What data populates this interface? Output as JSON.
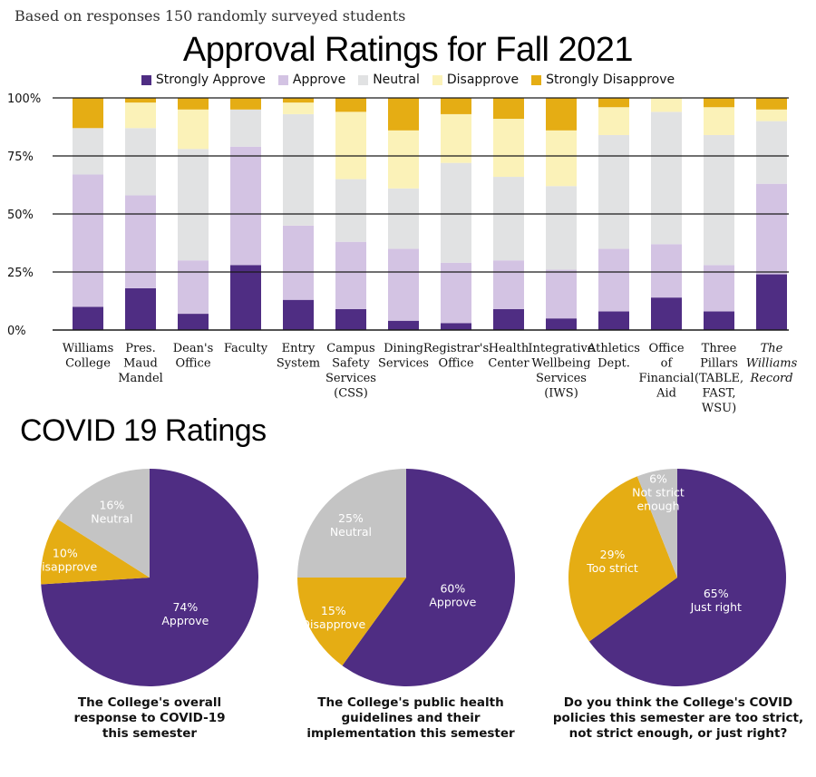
{
  "subtitle": "Based on responses 150 randomly surveyed students",
  "title": "Approval Ratings for Fall 2021",
  "colors": {
    "strongly_approve": "#4f2d83",
    "approve": "#d3c3e3",
    "neutral": "#e1e2e3",
    "disapprove": "#fbf2b8",
    "strongly_disapprove": "#e5ad14"
  },
  "legend": [
    "Strongly Approve",
    "Approve",
    "Neutral",
    "Disapprove",
    "Strongly Disapprove"
  ],
  "covid_title": "COVID 19 Ratings",
  "chart_data": [
    {
      "type": "bar",
      "stacked": true,
      "title": "Approval Ratings for Fall 2021",
      "ylim": [
        0,
        100
      ],
      "y_ticks": [
        "0%",
        "25%",
        "50%",
        "75%",
        "100%"
      ],
      "grid": true,
      "legend_position": "top",
      "categories": [
        [
          "Williams",
          "College"
        ],
        [
          "Pres.",
          "Maud",
          "Mandel"
        ],
        [
          "Dean's",
          "Office"
        ],
        [
          "Faculty"
        ],
        [
          "Entry",
          "System"
        ],
        [
          "Campus",
          "Safety",
          "Services",
          "(CSS)"
        ],
        [
          "Dining",
          "Services"
        ],
        [
          "Registrar's",
          "Office"
        ],
        [
          "Health",
          "Center"
        ],
        [
          "Integrative",
          "Wellbeing",
          "Services",
          "(IWS)"
        ],
        [
          "Athletics",
          "Dept."
        ],
        [
          "Office",
          "of",
          "Financial",
          "Aid"
        ],
        [
          "Three",
          "Pillars",
          "(TABLE,",
          "FAST,",
          "WSU)"
        ],
        [
          "The",
          "Williams",
          "Record"
        ]
      ],
      "italic_category_index": 13,
      "series": [
        {
          "name": "Strongly Approve",
          "values": [
            10,
            18,
            7,
            28,
            13,
            9,
            4,
            3,
            9,
            5,
            8,
            14,
            8,
            24
          ]
        },
        {
          "name": "Approve",
          "values": [
            57,
            40,
            23,
            51,
            32,
            29,
            31,
            26,
            21,
            21,
            27,
            23,
            20,
            39
          ]
        },
        {
          "name": "Neutral",
          "values": [
            20,
            29,
            48,
            16,
            48,
            27,
            26,
            43,
            36,
            36,
            49,
            57,
            56,
            27
          ]
        },
        {
          "name": "Disapprove",
          "values": [
            0,
            11,
            17,
            0,
            5,
            29,
            25,
            21,
            25,
            24,
            12,
            6,
            12,
            5
          ]
        },
        {
          "name": "Strongly Disapprove",
          "values": [
            13,
            2,
            5,
            5,
            2,
            6,
            14,
            7,
            9,
            14,
            4,
            0,
            4,
            5
          ]
        }
      ]
    },
    {
      "type": "pie",
      "caption": [
        "The College's overall",
        "response to COVID-19",
        "this semester"
      ],
      "slices": [
        {
          "label": "Approve",
          "value": 74,
          "pct": "74%",
          "color": "#4f2d83",
          "text": "#ffffff"
        },
        {
          "label": "Disapprove",
          "value": 10,
          "pct": "10%",
          "color": "#e5ad14",
          "text": "#ffffff"
        },
        {
          "label": "Neutral",
          "value": 16,
          "pct": "16%",
          "color": "#c4c4c4",
          "text": "#ffffff"
        }
      ]
    },
    {
      "type": "pie",
      "caption": [
        "The College's public health",
        "guidelines and their",
        "implementation this semester"
      ],
      "slices": [
        {
          "label": "Approve",
          "value": 60,
          "pct": "60%",
          "color": "#4f2d83",
          "text": "#ffffff"
        },
        {
          "label": "Disapprove",
          "value": 15,
          "pct": "15%",
          "color": "#e5ad14",
          "text": "#ffffff"
        },
        {
          "label": "Neutral",
          "value": 25,
          "pct": "25%",
          "color": "#c4c4c4",
          "text": "#ffffff"
        }
      ]
    },
    {
      "type": "pie",
      "caption": [
        "Do you think the College's COVID",
        "policies this semester are too strict,",
        "not strict enough, or just right?"
      ],
      "slices": [
        {
          "label": "Just right",
          "value": 65,
          "pct": "65%",
          "color": "#4f2d83",
          "text": "#ffffff"
        },
        {
          "label": "Too strict",
          "value": 29,
          "pct": "29%",
          "color": "#e5ad14",
          "text": "#ffffff"
        },
        {
          "label": "Not strict enough",
          "value": 6,
          "pct": "6%",
          "color": "#c4c4c4",
          "text": "#ffffff"
        }
      ]
    }
  ]
}
